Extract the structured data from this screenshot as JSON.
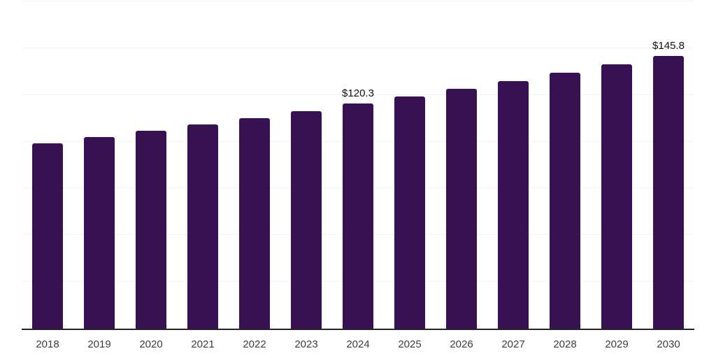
{
  "chart_data": {
    "type": "bar",
    "title": "",
    "xlabel": "",
    "ylabel": "",
    "categories": [
      "2018",
      "2019",
      "2020",
      "2021",
      "2022",
      "2023",
      "2024",
      "2025",
      "2026",
      "2027",
      "2028",
      "2029",
      "2030"
    ],
    "values": [
      99.1,
      102.4,
      105.8,
      109.3,
      112.6,
      116.4,
      120.3,
      124.2,
      128.2,
      132.4,
      136.9,
      141.3,
      145.8
    ],
    "data_labels": [
      "",
      "",
      "",
      "",
      "",
      "",
      "$120.3",
      "",
      "",
      "",
      "",
      "",
      "$145.8"
    ],
    "ylim": [
      0,
      175
    ],
    "grid_step": 25,
    "grid": true,
    "legend": false,
    "y_axis_tick_labels_visible": false,
    "colors": {
      "bar": "#371151",
      "gridline": "#f2f2f2",
      "axis_line": "#262626",
      "tick_label": "#3d3d3d",
      "value_label": "#111111",
      "background": "#ffffff"
    }
  }
}
